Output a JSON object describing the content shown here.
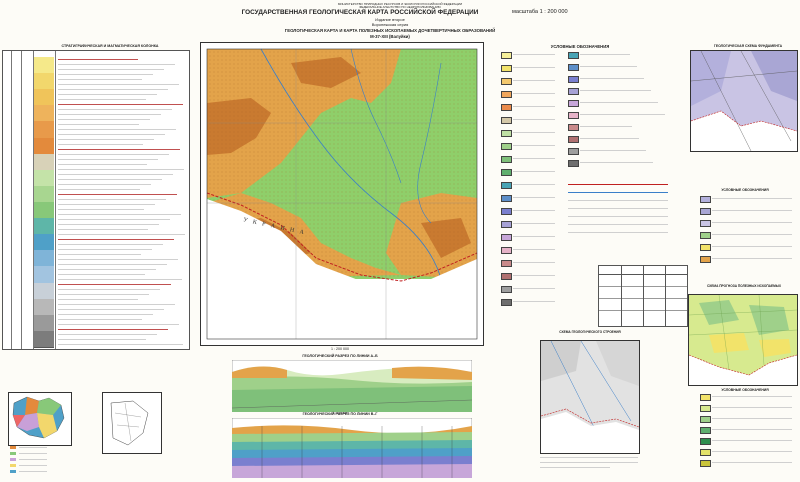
{
  "header": {
    "ministry_line1": "МИНИСТЕРСТВО ПРИРОДНЫХ РЕСУРСОВ И ЭКОЛОГИИ РОССИЙСКОЙ ФЕДЕРАЦИИ",
    "ministry_line2": "ФЕДЕРАЛЬНОЕ АГЕНТСТВО ПО НЕДРОПОЛЬЗОВАНИЮ",
    "title": "ГОСУДАРСТВЕННАЯ ГЕОЛОГИЧЕСКАЯ КАРТА РОССИЙСКОЙ ФЕДЕРАЦИИ",
    "scale": "масштаба 1 : 200 000",
    "edition": "Издание второе",
    "series": "Воронежская серия",
    "map_title": "ГЕОЛОГИЧЕСКАЯ КАРТА И КАРТА ПОЛЕЗНЫХ ИСКОПАЕМЫХ ДОЧЕТВЕРТИЧНЫХ ОБРАЗОВАНИЙ",
    "sheet": "M-37-XIII (Валуйки)"
  },
  "left_panel": {
    "title": "СТРАТИГРАФИЧЕСКАЯ И МАГМАТИЧЕСКАЯ КОЛОНКА"
  },
  "legend": {
    "title": "УСЛОВНЫЕ ОБОЗНАЧЕНИЯ",
    "section2_title": "УСЛОВНЫЕ ОБОЗНАЧЕНИЯ"
  },
  "main_map": {
    "country_label": "У К Р А И Н А",
    "scale_label": "1 : 200 000"
  },
  "sections": {
    "profile1_title": "ГЕОЛОГИЧЕСКИЙ РАЗРЕЗ ПО ЛИНИИ А–Б",
    "profile2_title": "ГЕОЛОГИЧЕСКИЙ РАЗРЕЗ ПО ЛИНИИ В–Г",
    "profile_scale": "1 : 200 000"
  },
  "inset_maps": {
    "top_right_title": "ГЕОЛОГИЧЕСКАЯ СХЕМА ФУНДАМЕНТА",
    "mid_right_title": "СХЕМА ПРОГНОЗА ПОЛЕЗНЫХ ИСКОПАЕМЫХ",
    "bottom_center_title": "СХЕМА ГЕОЛОГИЧЕСКОГО СТРОЕНИЯ",
    "bottom_right_legend": "УСЛОВНЫЕ ОБОЗНАЧЕНИЯ"
  },
  "colors": {
    "lowland": "#8fcf6a",
    "upland": "#e3a34a",
    "highland": "#b86a2a",
    "paper": "#fdfcf7",
    "frame": "#333333"
  },
  "legend_swatches": [
    "#f6f09a",
    "#f2e36a",
    "#f3c86d",
    "#f0a65c",
    "#ea8a4a",
    "#d4c8a8",
    "#bfe0a4",
    "#9fd08a",
    "#7fc07a",
    "#5faf6e",
    "#49a4b5",
    "#5d8fc9",
    "#7a7fcf",
    "#a7a2d6",
    "#c7a6d9",
    "#e6b3c8",
    "#c98a8a",
    "#b07070",
    "#9e9e9e",
    "#6e6e6e"
  ],
  "column_swatches": [
    "#f5e98a",
    "#f2d76c",
    "#f0c45a",
    "#eeb35c",
    "#e89a4a",
    "#e38a3c",
    "#d8d2b8",
    "#c4e3a8",
    "#a8d690",
    "#88c879",
    "#5eb6a8",
    "#4fa0c8",
    "#7fb4d8",
    "#a2c4e0",
    "#c8d0d8",
    "#b8b8b8",
    "#9a9a9a",
    "#7c7c7c"
  ]
}
